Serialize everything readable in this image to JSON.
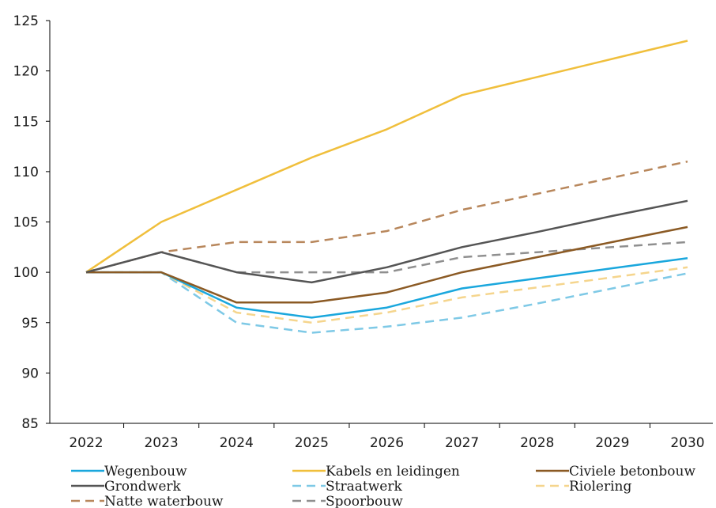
{
  "chart_data": {
    "type": "line",
    "x": [
      "2022",
      "2023",
      "2024",
      "2025",
      "2026",
      "2027",
      "2028",
      "2029",
      "2030"
    ],
    "ylim": [
      85,
      125
    ],
    "yticks": [
      85,
      90,
      95,
      100,
      105,
      110,
      115,
      120,
      125
    ],
    "grid": false,
    "legend_position": "bottom",
    "series": [
      {
        "name": "Wegenbouw",
        "color": "#1aa7dd",
        "dash": "solid",
        "values": [
          100,
          100,
          96.5,
          95.5,
          96.5,
          98.4,
          99.4,
          100.4,
          101.4
        ]
      },
      {
        "name": "Kabels en leidingen",
        "color": "#f0bf3c",
        "dash": "solid",
        "values": [
          100,
          105,
          108.2,
          111.4,
          114.2,
          117.6,
          119.4,
          121.2,
          123.0
        ]
      },
      {
        "name": "Civiele betonbouw",
        "color": "#8b5a24",
        "dash": "solid",
        "values": [
          100,
          100,
          97,
          97,
          98,
          100,
          101.5,
          103.0,
          104.5
        ]
      },
      {
        "name": "Grondwerk",
        "color": "#555555",
        "dash": "solid",
        "values": [
          100,
          102,
          100,
          99,
          100.5,
          102.5,
          104.0,
          105.6,
          107.1
        ]
      },
      {
        "name": "Straatwerk",
        "color": "#7ec9e6",
        "dash": "dashed",
        "values": [
          100,
          100,
          95,
          94,
          94.6,
          95.5,
          96.9,
          98.4,
          99.9
        ]
      },
      {
        "name": "Riolering",
        "color": "#f5d58d",
        "dash": "dashed",
        "values": [
          100,
          100,
          96,
          95,
          96,
          97.5,
          98.5,
          99.5,
          100.5
        ]
      },
      {
        "name": "Natte waterbouw",
        "color": "#b8875c",
        "dash": "dashed",
        "values": [
          100,
          102,
          103,
          103,
          104.1,
          106.2,
          107.8,
          109.4,
          111.0
        ]
      },
      {
        "name": "Spoorbouw",
        "color": "#8f8f8f",
        "dash": "dashed",
        "values": [
          100,
          102,
          100,
          100,
          100,
          101.5,
          102.0,
          102.5,
          103.0
        ]
      }
    ]
  }
}
